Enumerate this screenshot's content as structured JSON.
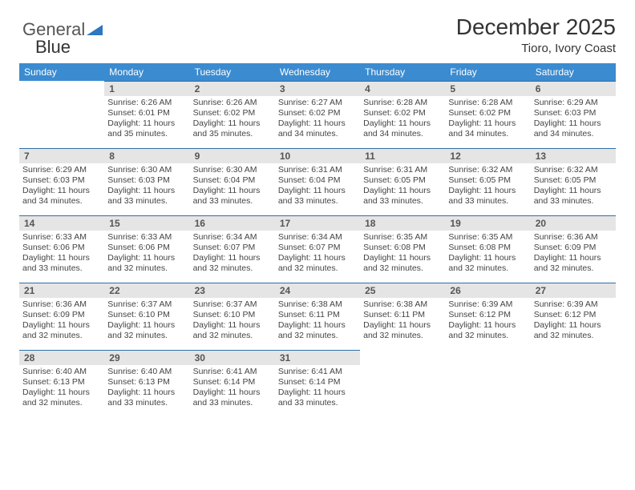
{
  "logo": {
    "text1": "General",
    "text2": "Blue"
  },
  "header": {
    "title": "December 2025",
    "subtitle": "Tioro, Ivory Coast"
  },
  "columns": [
    "Sunday",
    "Monday",
    "Tuesday",
    "Wednesday",
    "Thursday",
    "Friday",
    "Saturday"
  ],
  "colors": {
    "header_bg": "#3b8bd0",
    "header_fg": "#ffffff",
    "daynum_bg": "#e5e5e5",
    "rule": "#2f6fa8"
  },
  "weeks": [
    [
      {
        "n": ""
      },
      {
        "n": "1",
        "sr": "Sunrise: 6:26 AM",
        "ss": "Sunset: 6:01 PM",
        "d1": "Daylight: 11 hours",
        "d2": "and 35 minutes."
      },
      {
        "n": "2",
        "sr": "Sunrise: 6:26 AM",
        "ss": "Sunset: 6:02 PM",
        "d1": "Daylight: 11 hours",
        "d2": "and 35 minutes."
      },
      {
        "n": "3",
        "sr": "Sunrise: 6:27 AM",
        "ss": "Sunset: 6:02 PM",
        "d1": "Daylight: 11 hours",
        "d2": "and 34 minutes."
      },
      {
        "n": "4",
        "sr": "Sunrise: 6:28 AM",
        "ss": "Sunset: 6:02 PM",
        "d1": "Daylight: 11 hours",
        "d2": "and 34 minutes."
      },
      {
        "n": "5",
        "sr": "Sunrise: 6:28 AM",
        "ss": "Sunset: 6:02 PM",
        "d1": "Daylight: 11 hours",
        "d2": "and 34 minutes."
      },
      {
        "n": "6",
        "sr": "Sunrise: 6:29 AM",
        "ss": "Sunset: 6:03 PM",
        "d1": "Daylight: 11 hours",
        "d2": "and 34 minutes."
      }
    ],
    [
      {
        "n": "7",
        "sr": "Sunrise: 6:29 AM",
        "ss": "Sunset: 6:03 PM",
        "d1": "Daylight: 11 hours",
        "d2": "and 34 minutes."
      },
      {
        "n": "8",
        "sr": "Sunrise: 6:30 AM",
        "ss": "Sunset: 6:03 PM",
        "d1": "Daylight: 11 hours",
        "d2": "and 33 minutes."
      },
      {
        "n": "9",
        "sr": "Sunrise: 6:30 AM",
        "ss": "Sunset: 6:04 PM",
        "d1": "Daylight: 11 hours",
        "d2": "and 33 minutes."
      },
      {
        "n": "10",
        "sr": "Sunrise: 6:31 AM",
        "ss": "Sunset: 6:04 PM",
        "d1": "Daylight: 11 hours",
        "d2": "and 33 minutes."
      },
      {
        "n": "11",
        "sr": "Sunrise: 6:31 AM",
        "ss": "Sunset: 6:05 PM",
        "d1": "Daylight: 11 hours",
        "d2": "and 33 minutes."
      },
      {
        "n": "12",
        "sr": "Sunrise: 6:32 AM",
        "ss": "Sunset: 6:05 PM",
        "d1": "Daylight: 11 hours",
        "d2": "and 33 minutes."
      },
      {
        "n": "13",
        "sr": "Sunrise: 6:32 AM",
        "ss": "Sunset: 6:05 PM",
        "d1": "Daylight: 11 hours",
        "d2": "and 33 minutes."
      }
    ],
    [
      {
        "n": "14",
        "sr": "Sunrise: 6:33 AM",
        "ss": "Sunset: 6:06 PM",
        "d1": "Daylight: 11 hours",
        "d2": "and 33 minutes."
      },
      {
        "n": "15",
        "sr": "Sunrise: 6:33 AM",
        "ss": "Sunset: 6:06 PM",
        "d1": "Daylight: 11 hours",
        "d2": "and 32 minutes."
      },
      {
        "n": "16",
        "sr": "Sunrise: 6:34 AM",
        "ss": "Sunset: 6:07 PM",
        "d1": "Daylight: 11 hours",
        "d2": "and 32 minutes."
      },
      {
        "n": "17",
        "sr": "Sunrise: 6:34 AM",
        "ss": "Sunset: 6:07 PM",
        "d1": "Daylight: 11 hours",
        "d2": "and 32 minutes."
      },
      {
        "n": "18",
        "sr": "Sunrise: 6:35 AM",
        "ss": "Sunset: 6:08 PM",
        "d1": "Daylight: 11 hours",
        "d2": "and 32 minutes."
      },
      {
        "n": "19",
        "sr": "Sunrise: 6:35 AM",
        "ss": "Sunset: 6:08 PM",
        "d1": "Daylight: 11 hours",
        "d2": "and 32 minutes."
      },
      {
        "n": "20",
        "sr": "Sunrise: 6:36 AM",
        "ss": "Sunset: 6:09 PM",
        "d1": "Daylight: 11 hours",
        "d2": "and 32 minutes."
      }
    ],
    [
      {
        "n": "21",
        "sr": "Sunrise: 6:36 AM",
        "ss": "Sunset: 6:09 PM",
        "d1": "Daylight: 11 hours",
        "d2": "and 32 minutes."
      },
      {
        "n": "22",
        "sr": "Sunrise: 6:37 AM",
        "ss": "Sunset: 6:10 PM",
        "d1": "Daylight: 11 hours",
        "d2": "and 32 minutes."
      },
      {
        "n": "23",
        "sr": "Sunrise: 6:37 AM",
        "ss": "Sunset: 6:10 PM",
        "d1": "Daylight: 11 hours",
        "d2": "and 32 minutes."
      },
      {
        "n": "24",
        "sr": "Sunrise: 6:38 AM",
        "ss": "Sunset: 6:11 PM",
        "d1": "Daylight: 11 hours",
        "d2": "and 32 minutes."
      },
      {
        "n": "25",
        "sr": "Sunrise: 6:38 AM",
        "ss": "Sunset: 6:11 PM",
        "d1": "Daylight: 11 hours",
        "d2": "and 32 minutes."
      },
      {
        "n": "26",
        "sr": "Sunrise: 6:39 AM",
        "ss": "Sunset: 6:12 PM",
        "d1": "Daylight: 11 hours",
        "d2": "and 32 minutes."
      },
      {
        "n": "27",
        "sr": "Sunrise: 6:39 AM",
        "ss": "Sunset: 6:12 PM",
        "d1": "Daylight: 11 hours",
        "d2": "and 32 minutes."
      }
    ],
    [
      {
        "n": "28",
        "sr": "Sunrise: 6:40 AM",
        "ss": "Sunset: 6:13 PM",
        "d1": "Daylight: 11 hours",
        "d2": "and 32 minutes."
      },
      {
        "n": "29",
        "sr": "Sunrise: 6:40 AM",
        "ss": "Sunset: 6:13 PM",
        "d1": "Daylight: 11 hours",
        "d2": "and 33 minutes."
      },
      {
        "n": "30",
        "sr": "Sunrise: 6:41 AM",
        "ss": "Sunset: 6:14 PM",
        "d1": "Daylight: 11 hours",
        "d2": "and 33 minutes."
      },
      {
        "n": "31",
        "sr": "Sunrise: 6:41 AM",
        "ss": "Sunset: 6:14 PM",
        "d1": "Daylight: 11 hours",
        "d2": "and 33 minutes."
      },
      {
        "n": ""
      },
      {
        "n": ""
      },
      {
        "n": ""
      }
    ]
  ]
}
